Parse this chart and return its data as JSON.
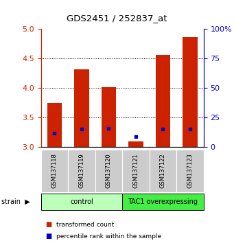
{
  "title": "GDS2451 / 252837_at",
  "samples": [
    "GSM137118",
    "GSM137119",
    "GSM137120",
    "GSM137121",
    "GSM137122",
    "GSM137123"
  ],
  "red_values": [
    3.75,
    4.32,
    4.01,
    3.09,
    4.56,
    4.87
  ],
  "blue_values": [
    3.23,
    3.3,
    3.32,
    3.18,
    3.3,
    3.3
  ],
  "ymin": 3.0,
  "ymax": 5.0,
  "yticks": [
    3.0,
    3.5,
    4.0,
    4.5,
    5.0
  ],
  "right_yticks": [
    0,
    25,
    50,
    75,
    100
  ],
  "right_yticklabels": [
    "0",
    "25",
    "50",
    "75",
    "100%"
  ],
  "groups": [
    {
      "label": "control",
      "start": 0,
      "end": 3,
      "color": "#bbffbb"
    },
    {
      "label": "TAC1 overexpressing",
      "start": 3,
      "end": 6,
      "color": "#44ee44"
    }
  ],
  "bar_color": "#cc2200",
  "blue_color": "#0000cc",
  "bar_width": 0.55,
  "ylabel_left_color": "#cc2200",
  "ylabel_right_color": "#0000cc",
  "legend_red_label": "transformed count",
  "legend_blue_label": "percentile rank within the sample",
  "tick_gray_bg": "#cccccc",
  "grid_color": "black",
  "grid_linestyle": ":",
  "grid_linewidth": 0.7
}
